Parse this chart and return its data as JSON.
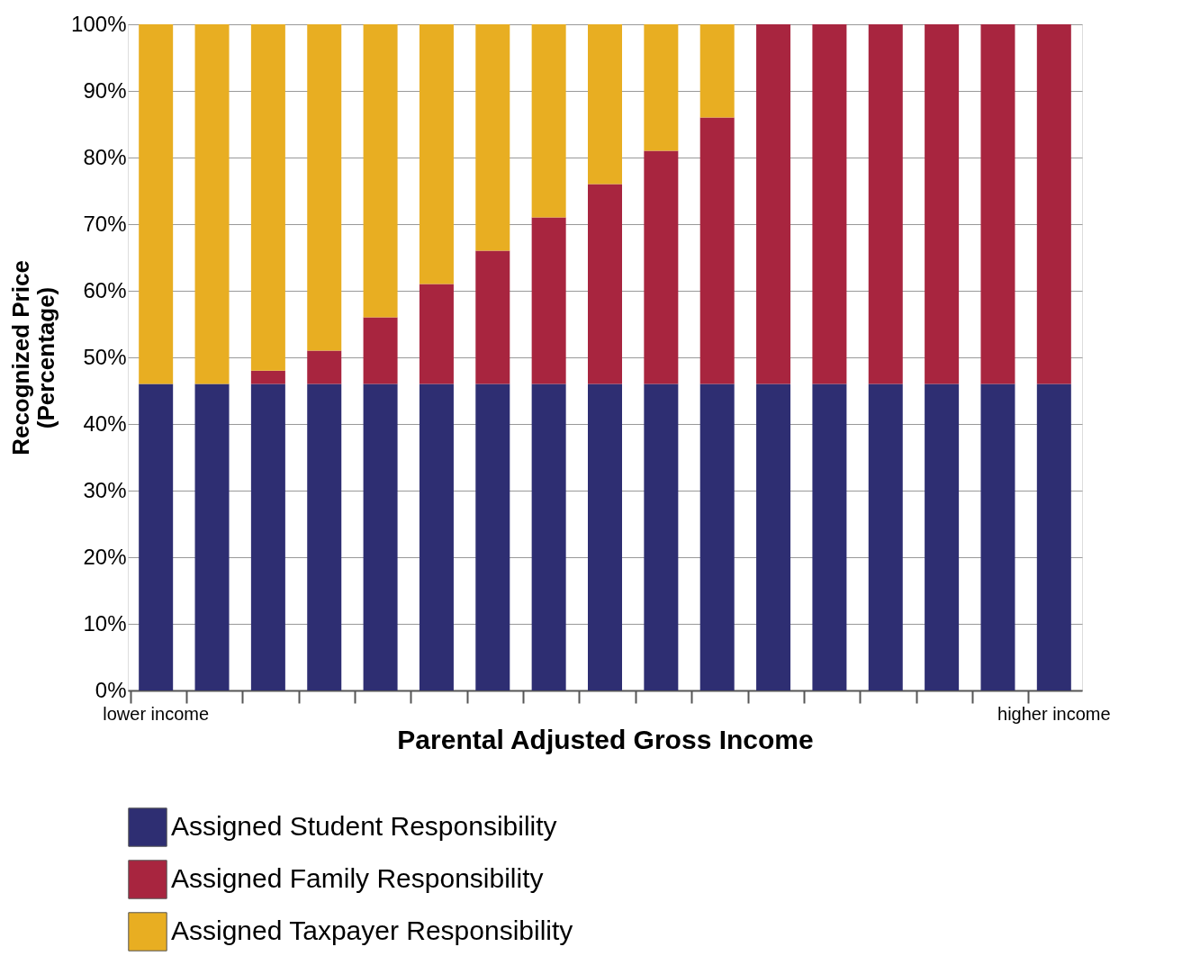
{
  "chart_data": {
    "type": "bar",
    "stacked": true,
    "xlabel": "Parental Adjusted Gross Income",
    "ylabel": "Recognized Price\n(Percentage)",
    "categories": [
      "lower income",
      null,
      null,
      null,
      null,
      null,
      null,
      null,
      null,
      null,
      null,
      null,
      null,
      null,
      null,
      null,
      "higher income"
    ],
    "series": [
      {
        "name": "Assigned Student Responsibility",
        "color": "#2e2e72",
        "values": [
          46,
          46,
          46,
          46,
          46,
          46,
          46,
          46,
          46,
          46,
          46,
          46,
          46,
          46,
          46,
          46,
          46
        ]
      },
      {
        "name": "Assigned Family Responsibility",
        "color": "#a8253f",
        "values": [
          0,
          0,
          2,
          5,
          10,
          15,
          20,
          25,
          30,
          35,
          40,
          54,
          54,
          54,
          54,
          54,
          54
        ]
      },
      {
        "name": "Assigned Taxpayer Responsibility",
        "color": "#e8ae22",
        "values": [
          54,
          54,
          52,
          49,
          44,
          39,
          34,
          29,
          24,
          19,
          14,
          0,
          0,
          0,
          0,
          0,
          0
        ]
      }
    ],
    "ylim": [
      0,
      100
    ],
    "yticks": [
      {
        "value": 0,
        "label": "0%"
      },
      {
        "value": 10,
        "label": "10%"
      },
      {
        "value": 20,
        "label": "20%"
      },
      {
        "value": 30,
        "label": "30%"
      },
      {
        "value": 40,
        "label": "40%"
      },
      {
        "value": 50,
        "label": "50%"
      },
      {
        "value": 60,
        "label": "60%"
      },
      {
        "value": 70,
        "label": "70%"
      },
      {
        "value": 80,
        "label": "80%"
      },
      {
        "value": 90,
        "label": "90%"
      },
      {
        "value": 100,
        "label": "100%"
      }
    ],
    "grid": "y",
    "legend": "bottom"
  }
}
